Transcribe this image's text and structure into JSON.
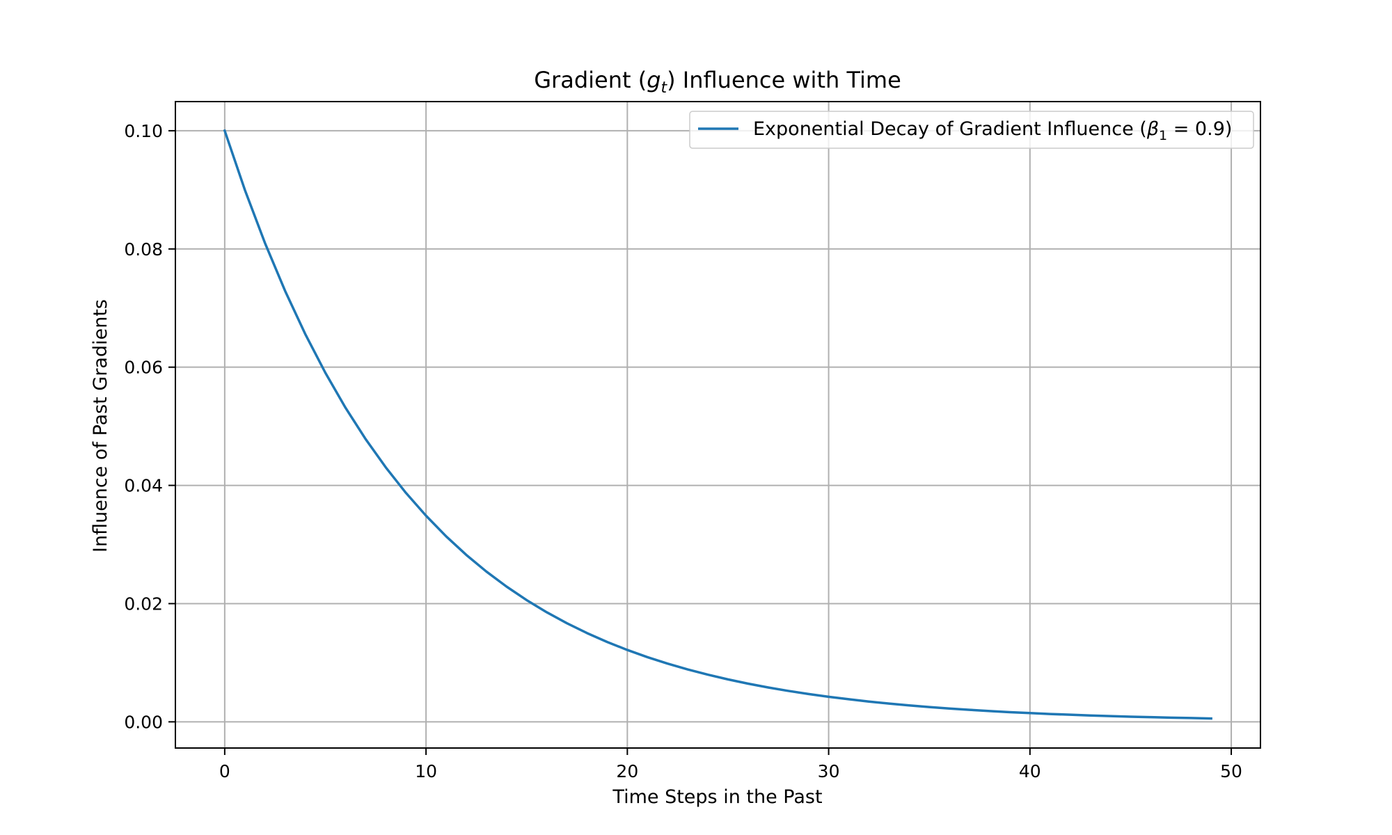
{
  "chart_data": {
    "type": "line",
    "title": {
      "prefix": "Gradient (",
      "var": "g",
      "sub": "t",
      "suffix": ") Influence with Time"
    },
    "xlabel": "Time Steps in the Past",
    "ylabel": "Influence of Past Gradients",
    "xlim": [
      -2.45,
      51.45
    ],
    "ylim": [
      -0.00443,
      0.10493
    ],
    "xticks": [
      0,
      10,
      20,
      30,
      40,
      50
    ],
    "xtick_labels": [
      "0",
      "10",
      "20",
      "30",
      "40",
      "50"
    ],
    "yticks": [
      0.0,
      0.02,
      0.04,
      0.06,
      0.08,
      0.1
    ],
    "ytick_labels": [
      "0.00",
      "0.02",
      "0.04",
      "0.06",
      "0.08",
      "0.10"
    ],
    "grid": true,
    "legend_position": "top-right",
    "series": [
      {
        "legend": {
          "prefix": "Exponential Decay of Gradient Influence (",
          "var": "β",
          "sub": "1",
          "suffix": " = 0.9)"
        },
        "color": "#1f77b4",
        "x": [
          0,
          1,
          2,
          3,
          4,
          5,
          6,
          7,
          8,
          9,
          10,
          11,
          12,
          13,
          14,
          15,
          16,
          17,
          18,
          19,
          20,
          21,
          22,
          23,
          24,
          25,
          26,
          27,
          28,
          29,
          30,
          31,
          32,
          33,
          34,
          35,
          36,
          37,
          38,
          39,
          40,
          41,
          42,
          43,
          44,
          45,
          46,
          47,
          48,
          49
        ],
        "y": [
          0.1,
          0.09,
          0.081,
          0.0729,
          0.06561,
          0.05905,
          0.05314,
          0.04783,
          0.04305,
          0.03874,
          0.03487,
          0.03138,
          0.02824,
          0.02542,
          0.02288,
          0.02059,
          0.01853,
          0.01668,
          0.01501,
          0.01351,
          0.01216,
          0.01094,
          0.00985,
          0.00886,
          0.00798,
          0.00718,
          0.00646,
          0.00581,
          0.00523,
          0.00471,
          0.00424,
          0.00382,
          0.00343,
          0.00309,
          0.00278,
          0.0025,
          0.00225,
          0.00203,
          0.00182,
          0.00164,
          0.00148,
          0.00133,
          0.0012,
          0.00108,
          0.00097,
          0.00087,
          0.00079,
          0.00071,
          0.00064,
          0.00057
        ]
      }
    ]
  }
}
